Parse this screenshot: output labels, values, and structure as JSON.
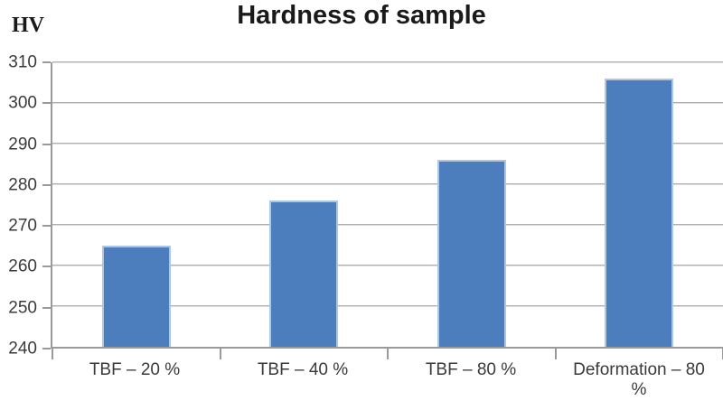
{
  "chart_data": {
    "type": "bar",
    "title": "Hardness of sample",
    "y_axis_title": "HV",
    "categories": [
      "TBF – 20 %",
      "TBF – 40 %",
      "TBF – 80 %",
      "Deformation – 80 %"
    ],
    "values": [
      265,
      276,
      286,
      306
    ],
    "ylim": [
      240,
      310
    ],
    "yticks": [
      240,
      250,
      260,
      270,
      280,
      290,
      300,
      310
    ],
    "xlabel": "",
    "ylabel": "HV",
    "grid": true,
    "legend": false,
    "colors": {
      "bar_fill": "#4c7ebd",
      "bar_border": "#adc6e3",
      "gridline": "#b0b0b0",
      "axis": "#9a9a9a",
      "tick_text": "#3a3a3a",
      "title_text": "#1a1a1a"
    }
  }
}
